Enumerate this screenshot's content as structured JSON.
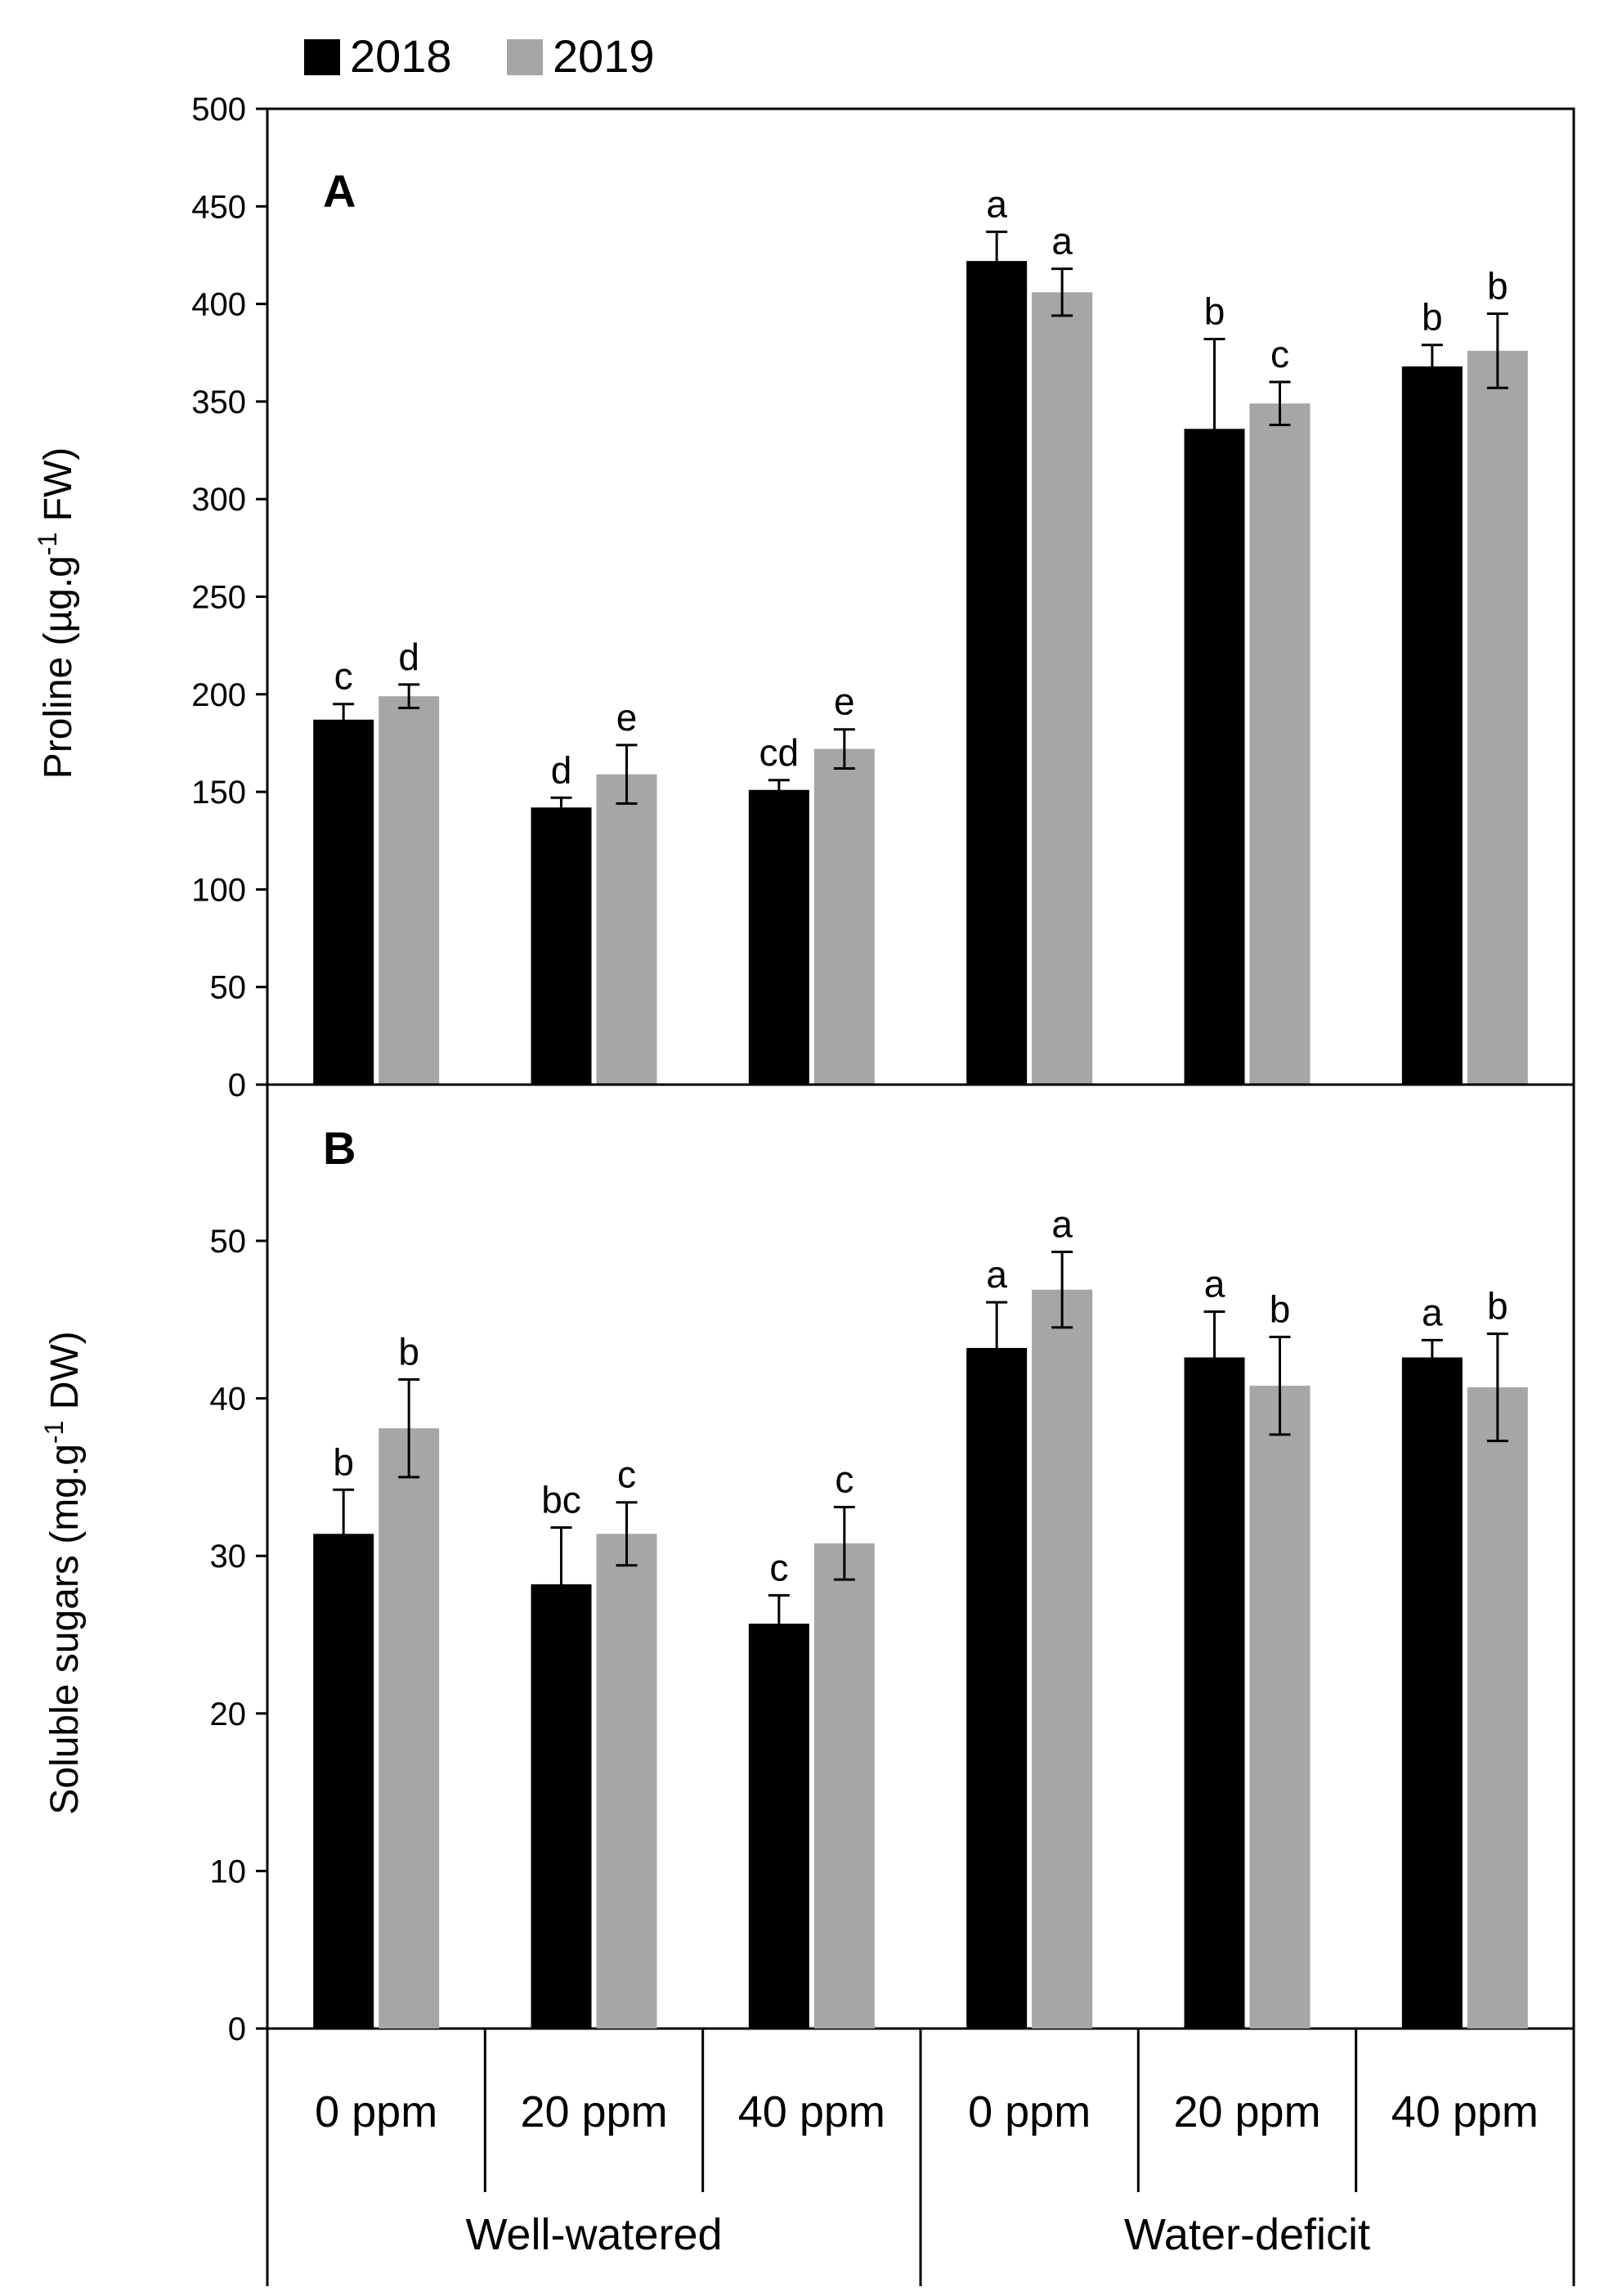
{
  "chart_data": {
    "type": "bar",
    "legend": {
      "placement": "top-left",
      "series": [
        "2018",
        "2019"
      ]
    },
    "x_categories": {
      "groups": [
        "Well-watered",
        "Water-deficit"
      ],
      "levels": [
        "0 ppm",
        "20 ppm",
        "40 ppm",
        "0 ppm",
        "20 ppm",
        "40 ppm"
      ]
    },
    "colors": {
      "2018": "#000000",
      "2019": "#a6a6a6",
      "axis": "#000000"
    },
    "panels": [
      {
        "panel": "A",
        "ylabel_main": "Proline (µg.g",
        "ylabel_sup": "-1",
        "ylabel_end": " FW)",
        "ylim": [
          0,
          500
        ],
        "yticks": [
          0,
          50,
          100,
          150,
          200,
          250,
          300,
          350,
          400,
          450,
          500
        ],
        "series": [
          {
            "name": "2018",
            "values": [
              187,
              142,
              151,
              422,
              336,
              368
            ],
            "errors": [
              8,
              5,
              5,
              15,
              46,
              11
            ],
            "letters": [
              "c",
              "d",
              "cd",
              "a",
              "b",
              "b"
            ]
          },
          {
            "name": "2019",
            "values": [
              199,
              159,
              172,
              406,
              349,
              376
            ],
            "errors": [
              6,
              15,
              10,
              12,
              11,
              19
            ],
            "letters": [
              "d",
              "e",
              "e",
              "a",
              "c",
              "b"
            ]
          }
        ]
      },
      {
        "panel": "B",
        "ylabel_main": "Soluble sugars (mg.g",
        "ylabel_sup": "-1",
        "ylabel_end": " DW)",
        "ylim": [
          0,
          60
        ],
        "yticks": [
          0,
          10,
          20,
          30,
          40,
          50
        ],
        "series": [
          {
            "name": "2018",
            "values": [
              31.4,
              28.2,
              25.7,
              43.2,
              42.6,
              42.6
            ],
            "errors": [
              2.8,
              3.6,
              1.8,
              2.9,
              2.9,
              1.1
            ],
            "letters": [
              "b",
              "bc",
              "c",
              "a",
              "a",
              "a"
            ]
          },
          {
            "name": "2019",
            "values": [
              38.1,
              31.4,
              30.8,
              46.9,
              40.8,
              40.7
            ],
            "errors": [
              3.1,
              2.0,
              2.3,
              2.4,
              3.1,
              3.4
            ],
            "letters": [
              "b",
              "c",
              "c",
              "a",
              "b",
              "b"
            ]
          }
        ]
      }
    ]
  }
}
